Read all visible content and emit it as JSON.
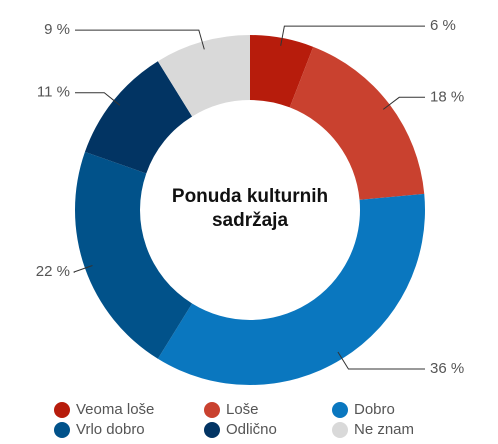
{
  "chart_data": {
    "type": "donut",
    "title": "Ponuda kulturnih sadržaja",
    "series": [
      {
        "name": "Veoma loše",
        "color": "#b71c0c",
        "values": [
          6
        ],
        "value_labels": [
          "6 %"
        ]
      },
      {
        "name": "Loše",
        "color": "#c9412f",
        "values": [
          18
        ],
        "value_labels": [
          "18 %"
        ]
      },
      {
        "name": "Dobro",
        "color": "#0a77bf",
        "values": [
          36
        ],
        "value_labels": [
          "36 %"
        ]
      },
      {
        "name": "Vrlo dobro",
        "color": "#01528a",
        "values": [
          22
        ],
        "value_labels": [
          "22 %"
        ]
      },
      {
        "name": "Odlično",
        "color": "#023463",
        "values": [
          11
        ],
        "value_labels": [
          "11 %"
        ]
      },
      {
        "name": "Ne znam",
        "color": "#d9d9d9",
        "values": [
          9
        ],
        "value_labels": [
          "9 %"
        ]
      }
    ]
  }
}
